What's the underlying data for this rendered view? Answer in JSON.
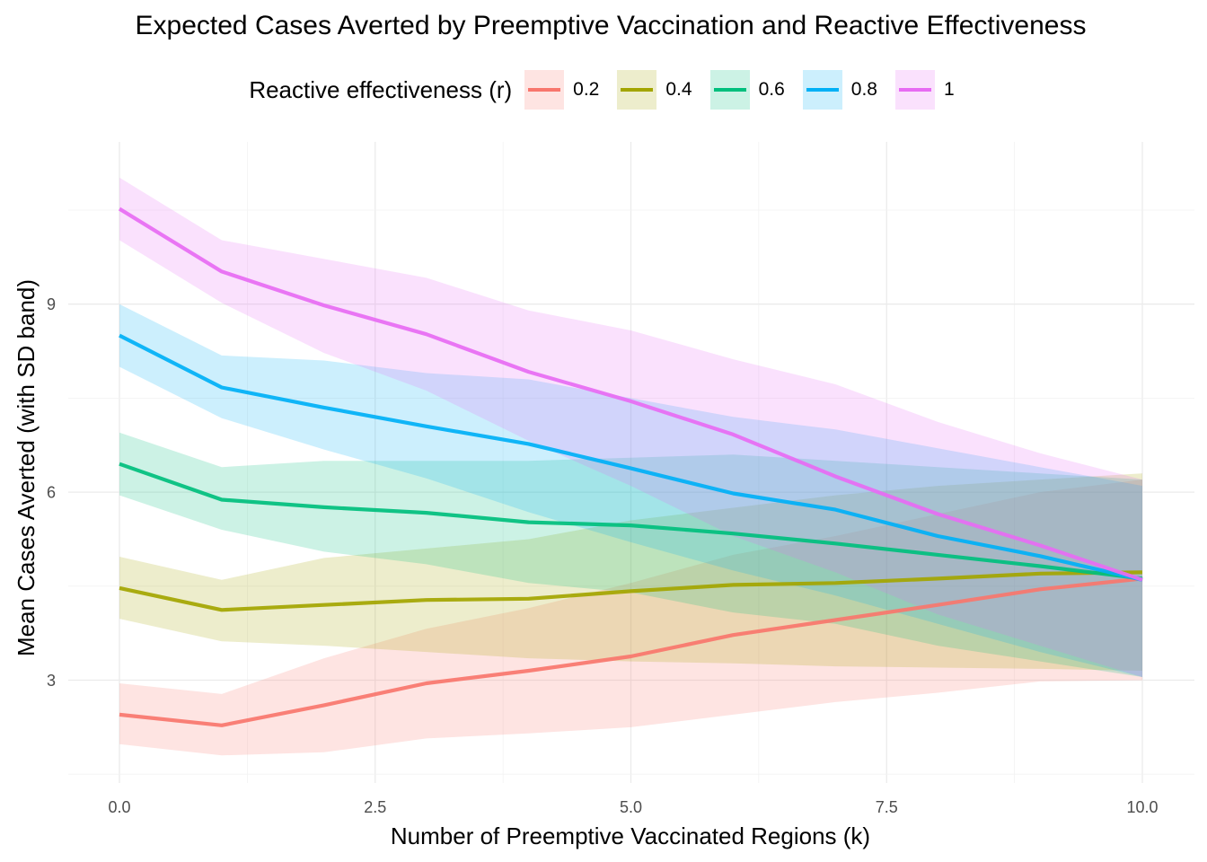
{
  "chart_data": {
    "type": "line",
    "title": "Expected Cases Averted by Preemptive Vaccination and Reactive Effectiveness",
    "xlabel": "Number of Preemptive Vaccinated Regions (k)",
    "ylabel": "Mean Cases Averted (with SD band)",
    "xlim": [
      -0.5,
      10.5
    ],
    "ylim": [
      1.4,
      11.4
    ],
    "x_ticks": [
      0,
      2.5,
      5,
      7.5,
      10
    ],
    "x_tick_labels": [
      "0.0",
      "2.5",
      "5.0",
      "7.5",
      "10.0"
    ],
    "y_ticks": [
      3,
      6,
      9
    ],
    "y_tick_labels": [
      "3",
      "6",
      "9"
    ],
    "grid": true,
    "legend": {
      "title": "Reactive effectiveness (r)",
      "position": "top"
    },
    "x": [
      0,
      1,
      2,
      3,
      4,
      5,
      6,
      7,
      8,
      9,
      10
    ],
    "series": [
      {
        "name": "0.2",
        "color": "#F8766D",
        "mean": [
          2.45,
          2.28,
          2.6,
          2.95,
          3.15,
          3.38,
          3.72,
          3.96,
          4.2,
          4.45,
          4.62
        ],
        "lower": [
          1.98,
          1.8,
          1.85,
          2.07,
          2.15,
          2.25,
          2.45,
          2.65,
          2.8,
          2.98,
          3.0
        ],
        "upper": [
          2.95,
          2.78,
          3.35,
          3.82,
          4.15,
          4.55,
          5.0,
          5.3,
          5.65,
          6.0,
          6.2
        ]
      },
      {
        "name": "0.4",
        "color": "#A3A500",
        "mean": [
          4.47,
          4.12,
          4.2,
          4.28,
          4.3,
          4.42,
          4.52,
          4.55,
          4.62,
          4.7,
          4.72
        ],
        "lower": [
          3.98,
          3.62,
          3.55,
          3.45,
          3.35,
          3.3,
          3.27,
          3.22,
          3.2,
          3.18,
          3.15
        ],
        "upper": [
          4.97,
          4.6,
          4.95,
          5.1,
          5.25,
          5.55,
          5.75,
          5.95,
          6.1,
          6.2,
          6.3
        ]
      },
      {
        "name": "0.6",
        "color": "#00BF7D",
        "mean": [
          6.45,
          5.88,
          5.76,
          5.67,
          5.52,
          5.47,
          5.34,
          5.18,
          5.0,
          4.82,
          4.62
        ],
        "lower": [
          5.95,
          5.4,
          5.05,
          4.85,
          4.55,
          4.4,
          4.08,
          3.9,
          3.55,
          3.3,
          3.05
        ],
        "upper": [
          6.95,
          6.4,
          6.5,
          6.5,
          6.5,
          6.55,
          6.6,
          6.5,
          6.4,
          6.3,
          6.2
        ]
      },
      {
        "name": "0.8",
        "color": "#00B0F6",
        "mean": [
          8.5,
          7.67,
          7.35,
          7.05,
          6.77,
          6.38,
          5.98,
          5.72,
          5.3,
          4.98,
          4.6
        ],
        "lower": [
          8.0,
          7.18,
          6.68,
          6.22,
          5.68,
          5.2,
          4.75,
          4.35,
          3.9,
          3.45,
          3.05
        ],
        "upper": [
          9.0,
          8.18,
          8.1,
          7.9,
          7.8,
          7.5,
          7.2,
          7.0,
          6.7,
          6.4,
          6.1
        ]
      },
      {
        "name": "1",
        "color": "#E76BF3",
        "mean": [
          10.52,
          9.52,
          8.98,
          8.52,
          7.92,
          7.45,
          6.92,
          6.25,
          5.65,
          5.15,
          4.6
        ],
        "lower": [
          10.02,
          9.02,
          8.22,
          7.62,
          6.82,
          6.1,
          5.3,
          4.72,
          4.05,
          3.55,
          3.05
        ],
        "upper": [
          11.02,
          10.02,
          9.72,
          9.42,
          8.9,
          8.58,
          8.12,
          7.72,
          7.12,
          6.62,
          6.2
        ]
      }
    ]
  }
}
